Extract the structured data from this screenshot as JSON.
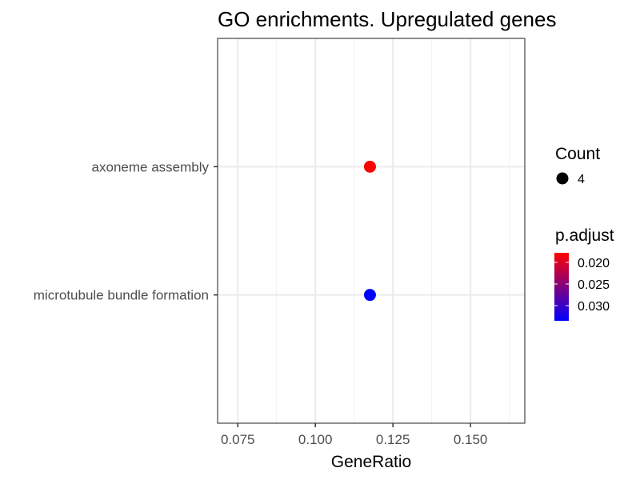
{
  "chart_data": {
    "type": "scatter",
    "title": "GO enrichments. Upregulated genes",
    "xlabel": "GeneRatio",
    "ylabel": "",
    "xlim": [
      0.0685,
      0.1675
    ],
    "xticks": [
      0.075,
      0.1,
      0.125,
      0.15
    ],
    "xtick_labels": [
      "0.075",
      "0.100",
      "0.125",
      "0.150"
    ],
    "categories": [
      "microtubule bundle formation",
      "axoneme assembly"
    ],
    "points": [
      {
        "term": "axoneme assembly",
        "x": 0.1176,
        "count": 4,
        "p_adjust": 0.0178
      },
      {
        "term": "microtubule bundle formation",
        "x": 0.1176,
        "count": 4,
        "p_adjust": 0.0335
      }
    ],
    "grid": true,
    "legend_placement": "right",
    "size_legend": {
      "title": "Count",
      "entries": [
        {
          "label": "4",
          "value": 4
        }
      ]
    },
    "color_legend": {
      "title": "p.adjust",
      "low_color": "#ff0000",
      "high_color": "#0000ff",
      "range": [
        0.0178,
        0.0335
      ],
      "tick_values": [
        0.02,
        0.025,
        0.03
      ],
      "tick_labels": [
        "0.020",
        "0.025",
        "0.030"
      ]
    }
  }
}
